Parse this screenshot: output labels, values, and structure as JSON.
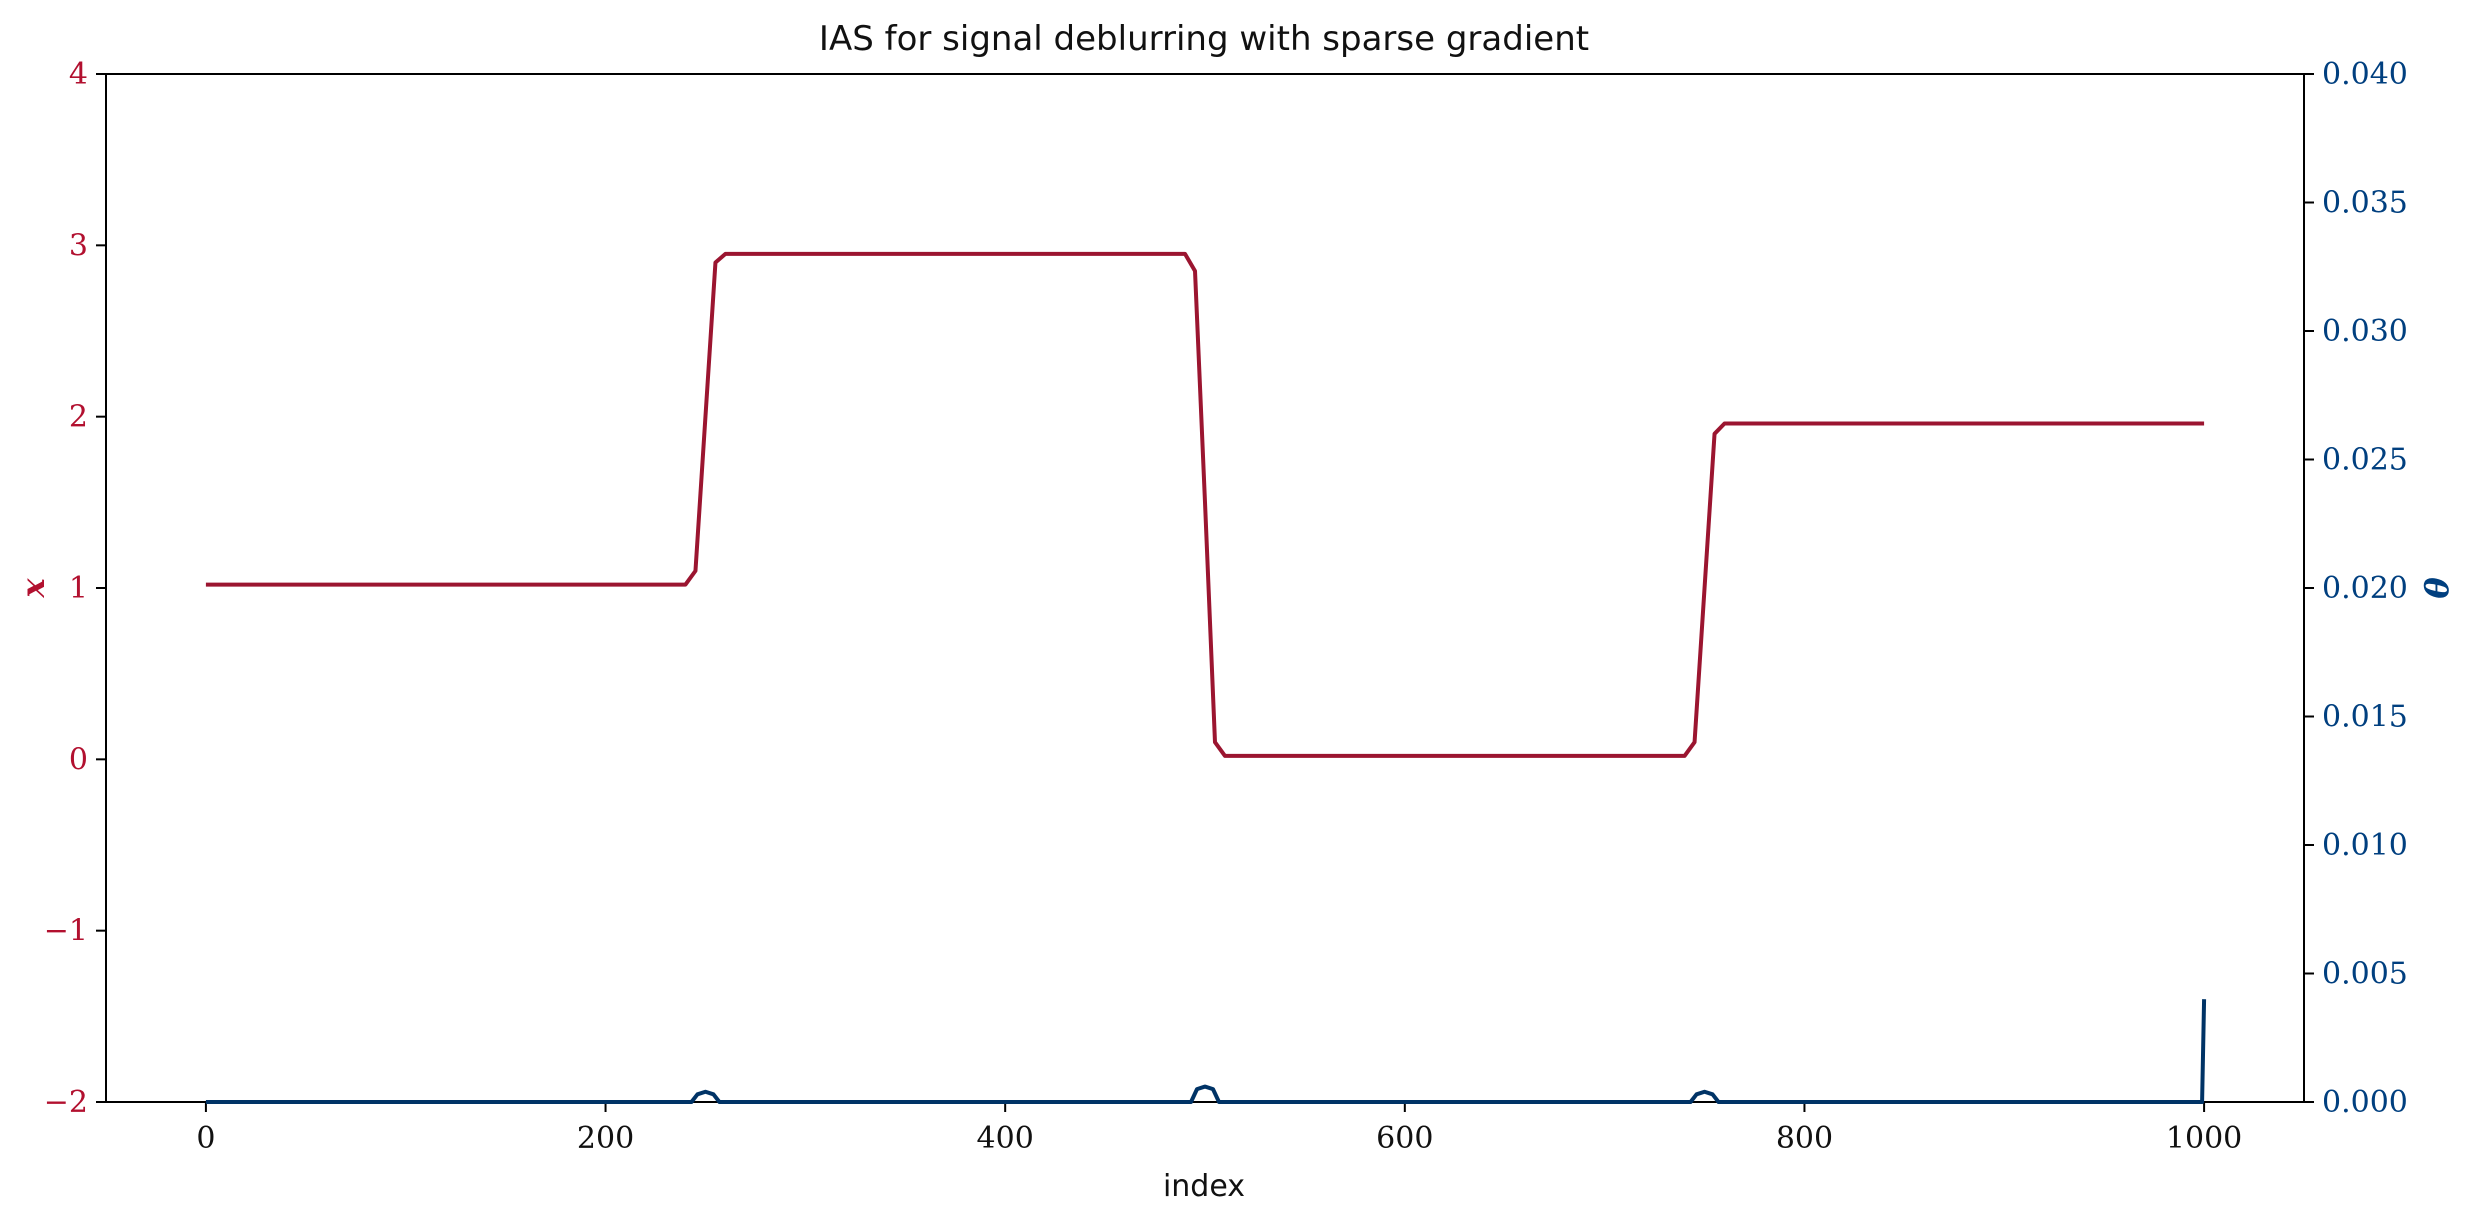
{
  "chart_data": {
    "type": "line",
    "title": "IAS for signal deblurring with sparse gradient",
    "xlabel": "index",
    "ylabel_left": "x",
    "ylabel_right": "θ",
    "xlim": [
      -50,
      1050
    ],
    "ylim_left": [
      -2,
      4
    ],
    "ylim_right": [
      0,
      0.04
    ],
    "xticks": [
      "0",
      "200",
      "400",
      "600",
      "800",
      "1000"
    ],
    "yticks_left": [
      "−2",
      "−1",
      "0",
      "1",
      "2",
      "3",
      "4"
    ],
    "yticks_right": [
      "0.000",
      "0.005",
      "0.010",
      "0.015",
      "0.020",
      "0.025",
      "0.030",
      "0.035",
      "0.040"
    ],
    "grid": false,
    "colors": {
      "left_axis": "#b2102f",
      "x_series": "#9b1530",
      "right_axis": "#003f7f",
      "theta_series": "#003366"
    },
    "series": [
      {
        "axis": "left",
        "x": [
          0,
          240,
          245,
          250,
          255,
          260,
          490,
          495,
          500,
          505,
          510,
          740,
          745,
          750,
          755,
          760,
          1000
        ],
        "y": [
          1.02,
          1.02,
          1.1,
          2.0,
          2.9,
          2.95,
          2.95,
          2.85,
          1.5,
          0.1,
          0.02,
          0.02,
          0.1,
          1.0,
          1.9,
          1.96,
          1.96
        ]
      },
      {
        "axis": "right",
        "x": [
          0,
          243,
          246,
          250,
          254,
          257,
          493,
          496,
          500,
          504,
          507,
          743,
          746,
          750,
          754,
          757,
          998,
          999,
          1000
        ],
        "y": [
          0,
          0,
          0.0003,
          0.0004,
          0.0003,
          0,
          0,
          0.0005,
          0.0006,
          0.0005,
          0,
          0,
          0.0003,
          0.0004,
          0.0003,
          0,
          0,
          0,
          0.004
        ]
      }
    ]
  }
}
